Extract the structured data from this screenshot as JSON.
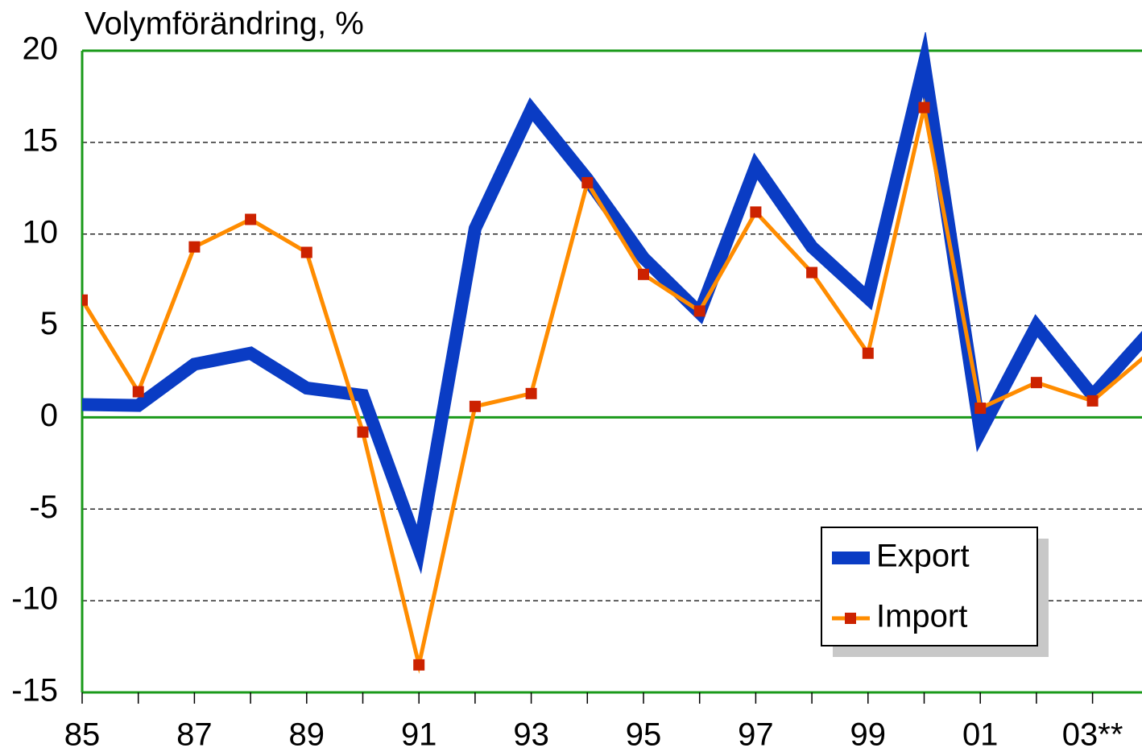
{
  "chart_data": {
    "type": "line",
    "y_label": "Volymförändring, %",
    "categories": [
      "85",
      null,
      "87",
      null,
      "89",
      null,
      "91",
      null,
      "93",
      null,
      "95",
      null,
      "97",
      null,
      "99",
      null,
      "01",
      null,
      "03**",
      null
    ],
    "series": [
      {
        "name": "Export",
        "color": "#0a3cc4",
        "values": [
          0.7,
          0.65,
          2.9,
          3.5,
          1.6,
          1.2,
          -7.2,
          10.3,
          16.8,
          13.0,
          8.7,
          5.7,
          13.7,
          9.3,
          6.5,
          19.3,
          -0.8,
          5.0,
          1.2,
          4.6
        ]
      },
      {
        "name": "Import",
        "color": "#ff8c00",
        "marker_color": "#cc2200",
        "values": [
          6.4,
          1.4,
          9.3,
          10.8,
          9.0,
          -0.8,
          -13.5,
          0.6,
          1.3,
          12.8,
          7.8,
          5.8,
          11.2,
          7.9,
          3.5,
          16.9,
          0.5,
          1.9,
          0.9,
          3.5
        ]
      }
    ],
    "ylim": [
      -15,
      20
    ],
    "yticks": [
      -15,
      -10,
      -5,
      0,
      5,
      10,
      15,
      20
    ],
    "grid": true,
    "legend": "lower right"
  }
}
